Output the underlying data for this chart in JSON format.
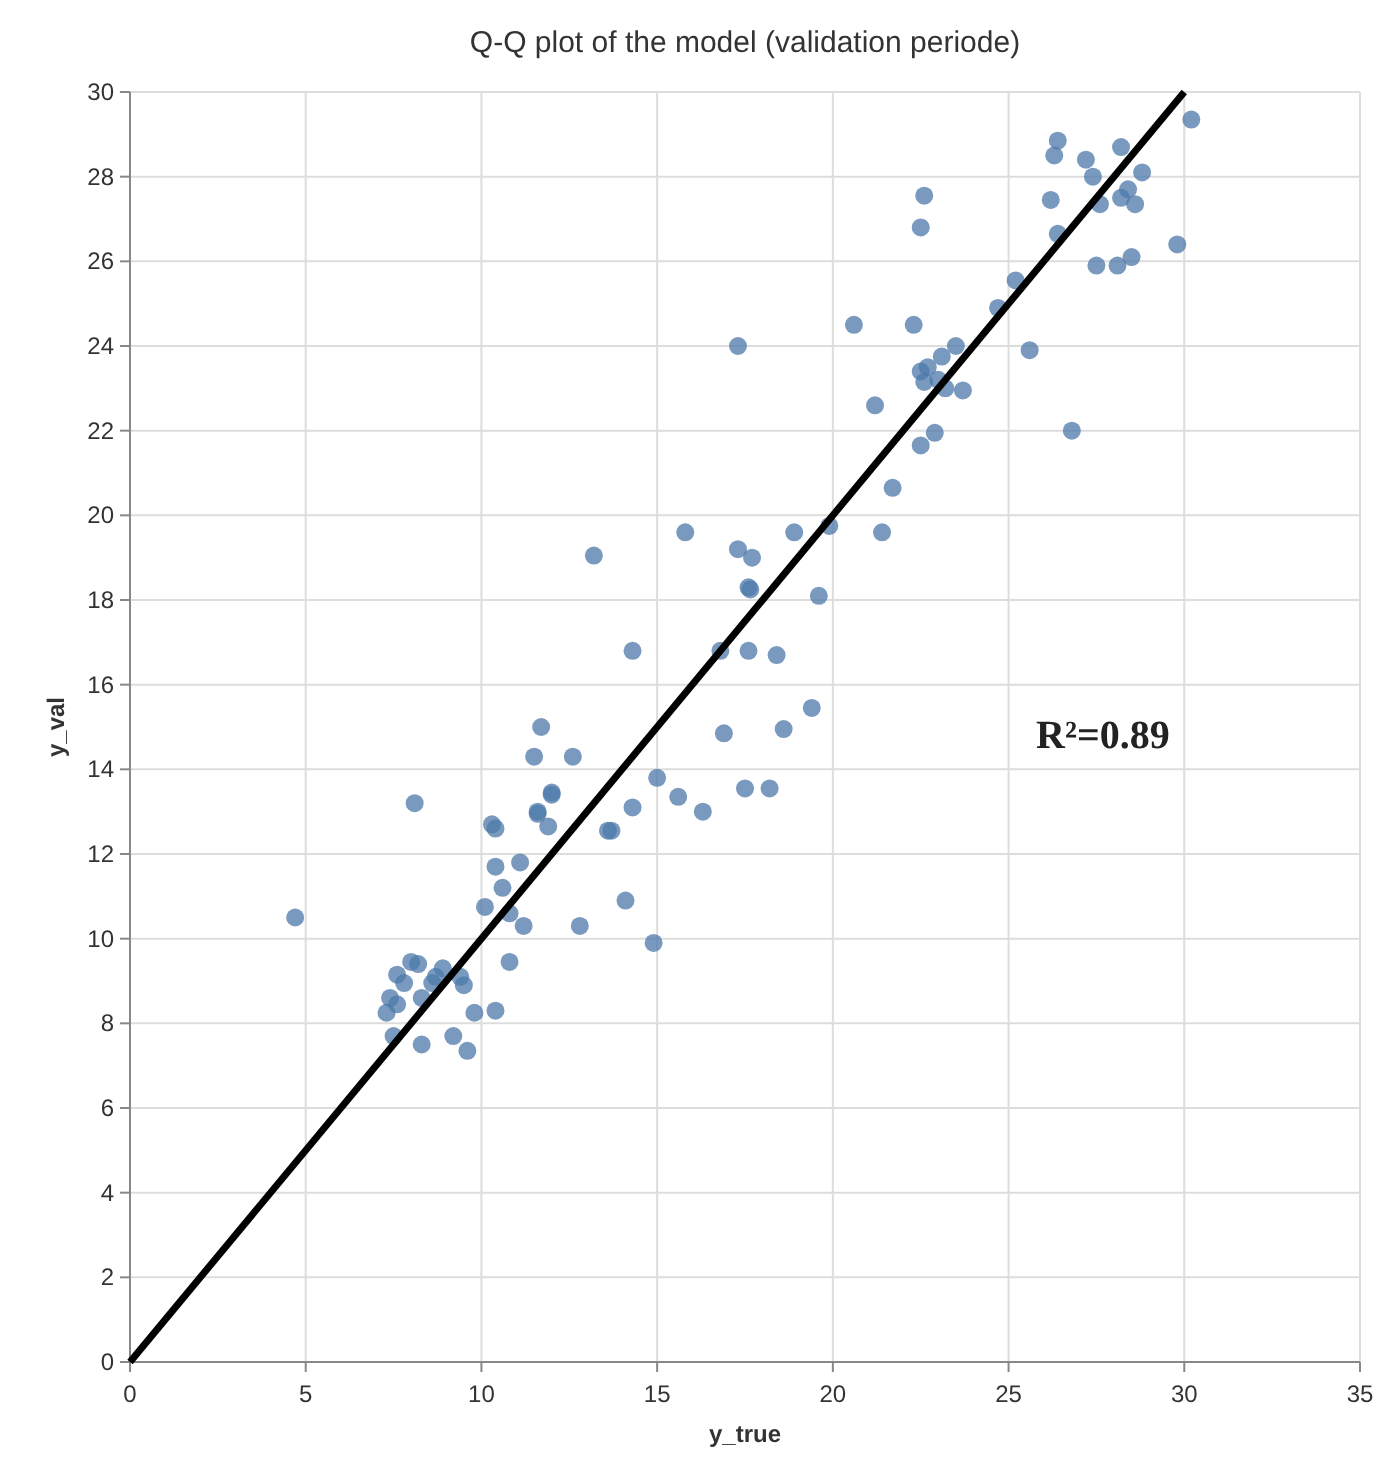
{
  "chart_data": {
    "type": "scatter",
    "title": "Q-Q plot of the model (validation periode)",
    "xlabel": "y_true",
    "ylabel": "y_val",
    "xlim": [
      0,
      35
    ],
    "xticks": [
      0,
      5,
      10,
      15,
      20,
      25,
      30,
      35
    ],
    "ylim": [
      0,
      30
    ],
    "yticks": [
      0,
      2,
      4,
      6,
      8,
      10,
      12,
      14,
      16,
      18,
      20,
      22,
      24,
      26,
      28,
      30
    ],
    "grid": true,
    "annotations": [
      "R²=0.89"
    ],
    "series": [
      {
        "marker": "circle",
        "color": "#4c78a8",
        "x": [
          4.7,
          8.1,
          17.6,
          19.6,
          14.3,
          16.8,
          17.6,
          18.4,
          19.4,
          16.9,
          18.6,
          11.7,
          11.5,
          12.6,
          12.0,
          12.0,
          11.6,
          11.6,
          11.9,
          10.3,
          10.4,
          15.0,
          15.6,
          14.3,
          16.3,
          17.5,
          18.2,
          13.6,
          13.7,
          11.1,
          10.4,
          10.6,
          10.1,
          10.8,
          11.2,
          12.8,
          14.1,
          14.9,
          10.8,
          8.0,
          8.2,
          7.6,
          7.8,
          8.9,
          8.7,
          8.6,
          9.4,
          9.5,
          7.4,
          7.6,
          7.3,
          8.3,
          9.8,
          10.4,
          7.5,
          8.3,
          9.2,
          9.6,
          30.2,
          26.4,
          26.3,
          27.2,
          28.2,
          27.4,
          28.8,
          26.2,
          27.6,
          28.2,
          28.4,
          28.6,
          22.6,
          22.5,
          26.4,
          29.8,
          27.5,
          28.1,
          28.5,
          25.2,
          24.7,
          20.6,
          22.3,
          17.3,
          25.6,
          23.5,
          23.1,
          22.5,
          22.7,
          23.0,
          22.6,
          23.2,
          23.7,
          21.2,
          22.5,
          22.9,
          26.8,
          21.7,
          18.9,
          19.9,
          21.4,
          17.7,
          17.3,
          17.65,
          15.8,
          13.2
        ],
        "values": [
          10.5,
          13.2,
          18.3,
          18.1,
          16.8,
          16.8,
          16.8,
          16.7,
          15.45,
          14.85,
          14.95,
          15.0,
          14.3,
          14.3,
          13.45,
          13.4,
          13.0,
          12.95,
          12.65,
          12.7,
          12.6,
          13.8,
          13.35,
          13.1,
          13.0,
          13.55,
          13.55,
          12.55,
          12.55,
          11.8,
          11.7,
          11.2,
          10.75,
          10.6,
          10.3,
          10.3,
          10.9,
          9.9,
          9.45,
          9.45,
          9.4,
          9.15,
          8.95,
          9.3,
          9.1,
          8.95,
          9.1,
          8.9,
          8.6,
          8.45,
          8.25,
          8.6,
          8.25,
          8.3,
          7.7,
          7.5,
          7.7,
          7.35,
          29.35,
          28.85,
          28.5,
          28.4,
          28.7,
          28.0,
          28.1,
          27.45,
          27.35,
          27.5,
          27.7,
          27.35,
          27.55,
          26.8,
          26.65,
          26.4,
          25.9,
          25.9,
          26.1,
          25.55,
          24.9,
          24.5,
          24.5,
          24.0,
          23.9,
          24.0,
          23.75,
          23.4,
          23.5,
          23.2,
          23.15,
          23.0,
          22.95,
          22.6,
          21.65,
          21.95,
          22.0,
          20.65,
          19.6,
          19.75,
          19.6,
          19.0,
          19.2,
          18.25,
          19.6,
          19.05
        ]
      },
      {
        "type": "line",
        "color": "#000000",
        "x": [
          0,
          30
        ],
        "values": [
          0,
          30
        ]
      }
    ]
  }
}
